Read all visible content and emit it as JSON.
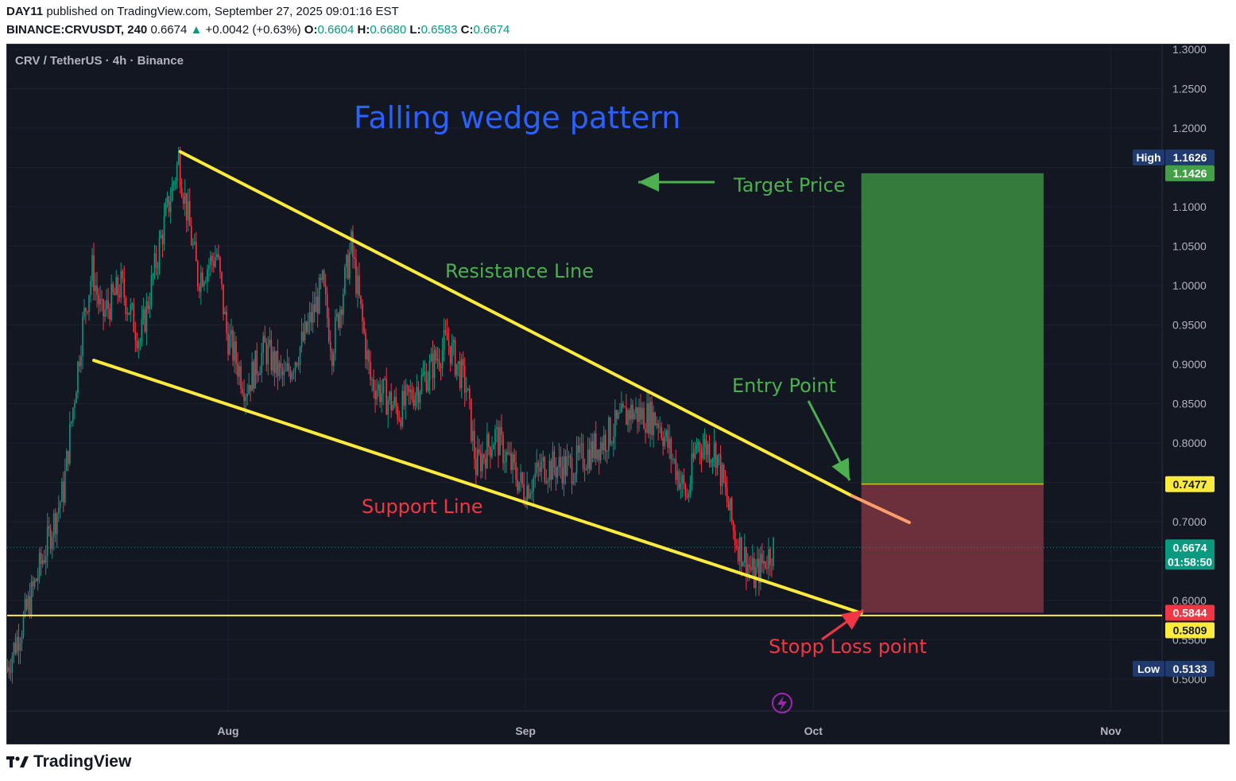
{
  "header": {
    "publisher": "DAY11",
    "published_text": "published on TradingView.com, September 27, 2025 09:01:16 EST",
    "symbol": "BINANCE:CRVUSDT, 240",
    "last": "0.6674",
    "change": "+0.0042 (+0.63%)",
    "open_label": "O:",
    "open": "0.6604",
    "high_label": "H:",
    "high": "0.6680",
    "low_label": "L:",
    "low": "0.6583",
    "close_label": "C:",
    "close": "0.6674"
  },
  "legend": {
    "text": "CRV / TetherUS · 4h · Binance"
  },
  "annotations": {
    "title": "Falling wedge pattern",
    "target": "Target Price",
    "resistance": "Resistance Line",
    "support": "Support Line",
    "entry": "Entry Point",
    "stop": "Stopp Loss point"
  },
  "brand": {
    "name": "TradingView"
  },
  "colors": {
    "background": "#131722",
    "up": "#089981",
    "down": "#f23645",
    "trendline": "#ffeb3b",
    "target_zone": "#3c8d40",
    "stop_zone": "#7b3540",
    "title": "#2962ff",
    "label_green": "#4caf50",
    "label_red": "#f23645"
  },
  "chart_data": {
    "type": "candlestick",
    "symbol": "BINANCE:CRVUSDT",
    "interval": "4h",
    "ylim": [
      0.47,
      1.305
    ],
    "y_ticks": [
      "1.3000",
      "1.2500",
      "1.2000",
      "1.1500",
      "1.1000",
      "1.0500",
      "1.0000",
      "0.9500",
      "0.9000",
      "0.8500",
      "0.8000",
      "0.7500",
      "0.7000",
      "0.6500",
      "0.6000",
      "0.5500",
      "0.5000"
    ],
    "x_ticks": [
      "Aug",
      "Sep",
      "Oct",
      "Nov"
    ],
    "price_path": [
      [
        "2025-07-09",
        0.51
      ],
      [
        "2025-07-11",
        0.58
      ],
      [
        "2025-07-13",
        0.66
      ],
      [
        "2025-07-15",
        0.74
      ],
      [
        "2025-07-17",
        0.95
      ],
      [
        "2025-07-18",
        1.02
      ],
      [
        "2025-07-19",
        0.96
      ],
      [
        "2025-07-21",
        1.0
      ],
      [
        "2025-07-23",
        0.93
      ],
      [
        "2025-07-25",
        1.05
      ],
      [
        "2025-07-27",
        1.16
      ],
      [
        "2025-07-29",
        1.01
      ],
      [
        "2025-07-31",
        1.04
      ],
      [
        "2025-08-01",
        0.94
      ],
      [
        "2025-08-03",
        0.87
      ],
      [
        "2025-08-05",
        0.92
      ],
      [
        "2025-08-07",
        0.88
      ],
      [
        "2025-08-09",
        0.93
      ],
      [
        "2025-08-11",
        1.0
      ],
      [
        "2025-08-12",
        0.92
      ],
      [
        "2025-08-14",
        1.05
      ],
      [
        "2025-08-16",
        0.88
      ],
      [
        "2025-08-19",
        0.84
      ],
      [
        "2025-08-22",
        0.89
      ],
      [
        "2025-08-24",
        0.93
      ],
      [
        "2025-08-26",
        0.87
      ],
      [
        "2025-08-27",
        0.77
      ],
      [
        "2025-08-29",
        0.81
      ],
      [
        "2025-09-01",
        0.74
      ],
      [
        "2025-09-03",
        0.77
      ],
      [
        "2025-09-06",
        0.77
      ],
      [
        "2025-09-09",
        0.8
      ],
      [
        "2025-09-12",
        0.84
      ],
      [
        "2025-09-15",
        0.83
      ],
      [
        "2025-09-18",
        0.73
      ],
      [
        "2025-09-19",
        0.8
      ],
      [
        "2025-09-21",
        0.79
      ],
      [
        "2025-09-23",
        0.68
      ],
      [
        "2025-09-25",
        0.63
      ],
      [
        "2025-09-27",
        0.6674
      ]
    ],
    "overall_high": 1.1626,
    "overall_low": 0.5133,
    "last_price": 0.6674,
    "countdown": "01:58:50",
    "position": {
      "target": 1.1426,
      "entry": 0.7477,
      "stop": 0.5844
    },
    "horizontal_line": 0.5809,
    "price_labels": [
      {
        "text": "High",
        "value": "1.1626"
      },
      {
        "value": "1.1426"
      },
      {
        "value": "0.7477"
      },
      {
        "value": "0.6674"
      },
      {
        "value": "0.5844"
      },
      {
        "value": "0.5809"
      },
      {
        "text": "Low",
        "value": "0.5133"
      }
    ]
  }
}
